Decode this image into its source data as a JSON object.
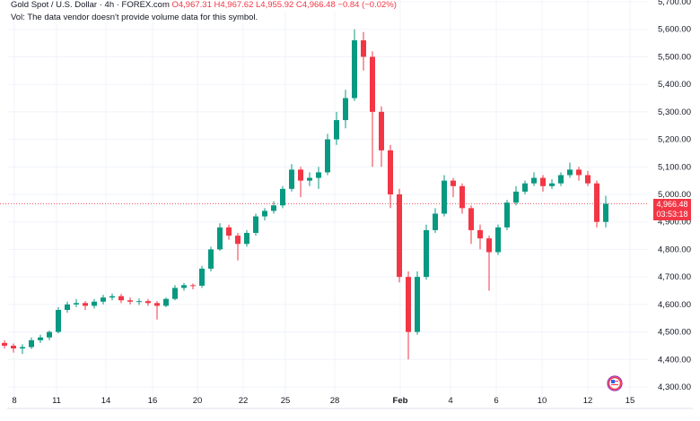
{
  "header": {
    "symbol": "Gold Spot / U.S. Dollar · 4h · FOREX.com",
    "o": "O4,967.31",
    "h": "H4,967.62",
    "l": "L4,955.92",
    "c": "C4,966.48",
    "chg": "−0.84 (−0.02%)",
    "vol": "Vol: The data vendor doesn't provide volume data for this symbol."
  },
  "price_label": {
    "price": "4,966.48",
    "countdown": "03:53:18"
  },
  "colors": {
    "up": "#089981",
    "down": "#f23645",
    "grid": "#f0f3fa"
  },
  "y_ticks": [
    "5,700.00",
    "5,600.00",
    "5,500.00",
    "5,400.00",
    "5,300.00",
    "5,200.00",
    "5,100.00",
    "5,000.00",
    "4,900.00",
    "4,800.00",
    "4,700.00",
    "4,600.00",
    "4,500.00",
    "4,400.00",
    "4,300.00"
  ],
  "x_ticks": [
    "8",
    "11",
    "14",
    "16",
    "20",
    "22",
    "25",
    "28",
    "Feb",
    "4",
    "6",
    "10",
    "12",
    "15"
  ],
  "chart_data": {
    "type": "candlestick",
    "ylim": [
      4300,
      5700
    ],
    "last": 4966.48,
    "candles": [
      [
        4460,
        4470,
        4440,
        4450
      ],
      [
        4450,
        4458,
        4425,
        4440
      ],
      [
        4440,
        4455,
        4420,
        4445
      ],
      [
        4445,
        4480,
        4438,
        4470
      ],
      [
        4470,
        4490,
        4460,
        4480
      ],
      [
        4480,
        4505,
        4470,
        4500
      ],
      [
        4500,
        4590,
        4495,
        4580
      ],
      [
        4580,
        4610,
        4570,
        4600
      ],
      [
        4600,
        4620,
        4590,
        4605
      ],
      [
        4605,
        4612,
        4580,
        4595
      ],
      [
        4595,
        4620,
        4585,
        4610
      ],
      [
        4610,
        4635,
        4600,
        4625
      ],
      [
        4625,
        4640,
        4615,
        4630
      ],
      [
        4630,
        4638,
        4605,
        4615
      ],
      [
        4615,
        4625,
        4600,
        4610
      ],
      [
        4610,
        4622,
        4598,
        4612
      ],
      [
        4612,
        4620,
        4595,
        4605
      ],
      [
        4605,
        4612,
        4545,
        4595
      ],
      [
        4595,
        4625,
        4590,
        4620
      ],
      [
        4620,
        4670,
        4615,
        4660
      ],
      [
        4660,
        4678,
        4650,
        4670
      ],
      [
        4670,
        4676,
        4655,
        4668
      ],
      [
        4668,
        4740,
        4660,
        4730
      ],
      [
        4730,
        4810,
        4720,
        4800
      ],
      [
        4800,
        4895,
        4795,
        4880
      ],
      [
        4880,
        4890,
        4835,
        4850
      ],
      [
        4850,
        4860,
        4760,
        4820
      ],
      [
        4820,
        4870,
        4810,
        4860
      ],
      [
        4860,
        4930,
        4850,
        4920
      ],
      [
        4920,
        4950,
        4905,
        4940
      ],
      [
        4940,
        4975,
        4930,
        4960
      ],
      [
        4960,
        5030,
        4950,
        5020
      ],
      [
        5020,
        5110,
        5010,
        5090
      ],
      [
        5090,
        5100,
        4990,
        5050
      ],
      [
        5050,
        5080,
        5030,
        5060
      ],
      [
        5060,
        5100,
        5020,
        5080
      ],
      [
        5080,
        5220,
        5070,
        5200
      ],
      [
        5200,
        5300,
        5180,
        5270
      ],
      [
        5270,
        5380,
        5240,
        5350
      ],
      [
        5350,
        5600,
        5340,
        5560
      ],
      [
        5560,
        5590,
        5450,
        5500
      ],
      [
        5500,
        5520,
        5100,
        5300
      ],
      [
        5300,
        5320,
        5100,
        5160
      ],
      [
        5160,
        5180,
        4950,
        5000
      ],
      [
        5000,
        5020,
        4680,
        4700
      ],
      [
        4700,
        4720,
        4400,
        4500
      ],
      [
        4500,
        4720,
        4490,
        4700
      ],
      [
        4700,
        4890,
        4690,
        4870
      ],
      [
        4870,
        4950,
        4860,
        4930
      ],
      [
        4930,
        5070,
        4920,
        5050
      ],
      [
        5050,
        5060,
        4990,
        5030
      ],
      [
        5030,
        5040,
        4930,
        4950
      ],
      [
        4950,
        4960,
        4820,
        4870
      ],
      [
        4870,
        4890,
        4800,
        4840
      ],
      [
        4840,
        4850,
        4650,
        4790
      ],
      [
        4790,
        4890,
        4780,
        4880
      ],
      [
        4880,
        4980,
        4870,
        4970
      ],
      [
        4970,
        5030,
        4960,
        5010
      ],
      [
        5010,
        5050,
        5000,
        5040
      ],
      [
        5040,
        5080,
        5030,
        5060
      ],
      [
        5060,
        5070,
        5010,
        5030
      ],
      [
        5030,
        5055,
        5020,
        5040
      ],
      [
        5040,
        5080,
        5030,
        5070
      ],
      [
        5070,
        5115,
        5060,
        5090
      ],
      [
        5090,
        5100,
        5050,
        5070
      ],
      [
        5070,
        5085,
        5030,
        5040
      ],
      [
        5040,
        5050,
        4880,
        4900
      ],
      [
        4900,
        4995,
        4880,
        4966
      ]
    ]
  }
}
